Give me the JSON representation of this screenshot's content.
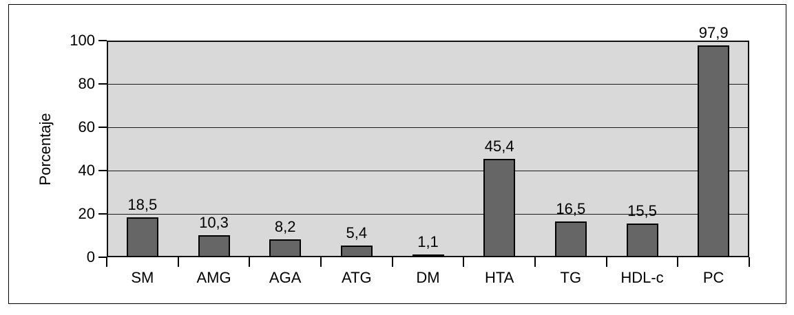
{
  "chart_data": {
    "type": "bar",
    "categories": [
      "SM",
      "AMG",
      "AGA",
      "ATG",
      "DM",
      "HTA",
      "TG",
      "HDL-c",
      "PC"
    ],
    "values": [
      18.5,
      10.3,
      8.2,
      5.4,
      1.1,
      45.4,
      16.5,
      15.5,
      97.9
    ],
    "value_labels": [
      "18,5",
      "10,3",
      "8,2",
      "5,4",
      "1,1",
      "45,4",
      "16,5",
      "15,5",
      "97,9"
    ],
    "title": "",
    "xlabel": "",
    "ylabel": "Porcentaje",
    "ylim": [
      0,
      100
    ],
    "yticks": [
      0,
      20,
      40,
      60,
      80,
      100
    ],
    "gridlines_at": [
      20,
      40,
      60,
      80
    ],
    "grid": true,
    "legend": "none",
    "decimal_separator": ",",
    "colors": {
      "bar_fill": "#666666",
      "bar_border": "#000000",
      "plot_background": "#d9d9d9",
      "grid_color": "#1a1a1a",
      "axis_color": "#000000",
      "page_background": "#ffffff",
      "frame_border": "#000000"
    }
  }
}
